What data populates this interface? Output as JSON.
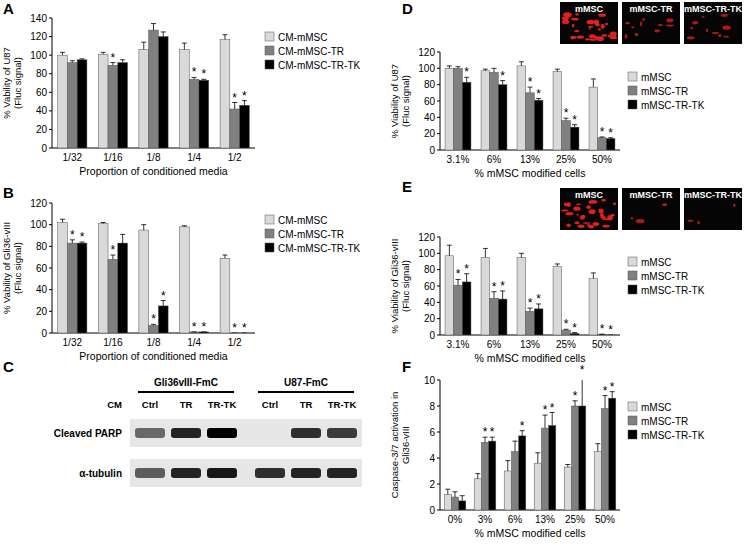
{
  "chart_data": [
    {
      "type": "bar",
      "panel_label": "A",
      "xlabel": "Proportion of conditioned media",
      "ylabel": "% Vability of U87\n(Fluc signal)",
      "categories": [
        "1/32",
        "1/16",
        "1/8",
        "1/4",
        "1/2"
      ],
      "ylim": [
        0,
        140
      ],
      "yticks": [
        0,
        20,
        40,
        60,
        80,
        100,
        120,
        140
      ],
      "grid": false,
      "legend": "right",
      "series": [
        {
          "name": "CM-mMSC",
          "color": "#d9d9d9",
          "values": [
            100,
            101,
            106,
            106,
            117
          ],
          "errors": [
            3,
            2,
            8,
            7,
            5
          ],
          "star_labels": [
            null,
            null,
            null,
            null,
            null
          ]
        },
        {
          "name": "CM-mMSC-TR",
          "color": "#808080",
          "values": [
            92,
            89,
            127,
            74,
            42
          ],
          "errors": [
            2,
            3,
            7,
            2,
            7
          ],
          "star_labels": [
            null,
            "*",
            null,
            "*",
            "*"
          ]
        },
        {
          "name": "CM-mMSC-TR-TK",
          "color": "#000000",
          "values": [
            95,
            92,
            120,
            73,
            46
          ],
          "errors": [
            1,
            3,
            5,
            1,
            5
          ],
          "star_labels": [
            null,
            null,
            null,
            "*",
            "*"
          ]
        }
      ]
    },
    {
      "type": "bar",
      "panel_label": "B",
      "xlabel": "Proportion of conditioned media",
      "ylabel": "% Vability of Gli36-vIII\n(Fluc signal)",
      "categories": [
        "1/32",
        "1/16",
        "1/8",
        "1/4",
        "1/2"
      ],
      "ylim": [
        0,
        120
      ],
      "yticks": [
        0,
        20,
        40,
        60,
        80,
        100,
        120
      ],
      "grid": false,
      "legend": "right",
      "series": [
        {
          "name": "CM-mMSC",
          "color": "#d9d9d9",
          "values": [
            102,
            101,
            95,
            98,
            69
          ],
          "errors": [
            3,
            1,
            5,
            1,
            3
          ],
          "star_labels": [
            null,
            null,
            null,
            null,
            null
          ]
        },
        {
          "name": "CM-mMSC-TR",
          "color": "#808080",
          "values": [
            83,
            68,
            7,
            1,
            0
          ],
          "errors": [
            3,
            4,
            1,
            0,
            0
          ],
          "star_labels": [
            "*",
            "*",
            "*",
            "*",
            "*"
          ]
        },
        {
          "name": "CM-mMSC-TR-TK",
          "color": "#000000",
          "values": [
            83,
            83,
            25,
            1,
            0
          ],
          "errors": [
            1,
            8,
            5,
            0,
            0
          ],
          "star_labels": [
            "*",
            null,
            "*",
            "*",
            "*"
          ]
        }
      ]
    },
    {
      "type": "bar",
      "panel_label": "D",
      "xlabel": "% mMSC modified cells",
      "ylabel": "% Viability of U87\n(Fluc signal)",
      "categories": [
        "3.1%",
        "6%",
        "13%",
        "25%",
        "50%"
      ],
      "ylim": [
        0,
        120
      ],
      "yticks": [
        0,
        20,
        40,
        60,
        80,
        100,
        120
      ],
      "grid": false,
      "legend": "right",
      "insets": [
        "mMSC",
        "mMSC-TR",
        "mMSC-TR-TK"
      ],
      "series": [
        {
          "name": "mMSC",
          "color": "#d9d9d9",
          "values": [
            100,
            97,
            103,
            96,
            77
          ],
          "errors": [
            3,
            2,
            5,
            3,
            10
          ],
          "star_labels": [
            null,
            null,
            null,
            null,
            null
          ]
        },
        {
          "name": "mMSC-TR",
          "color": "#808080",
          "values": [
            100,
            95,
            70,
            36,
            15
          ],
          "errors": [
            2,
            5,
            7,
            3,
            1
          ],
          "star_labels": [
            null,
            null,
            "*",
            "*",
            "*"
          ]
        },
        {
          "name": "mMSC-TR-TK",
          "color": "#000000",
          "values": [
            83,
            80,
            61,
            28,
            14
          ],
          "errors": [
            6,
            5,
            2,
            3,
            1
          ],
          "star_labels": [
            "*",
            "*",
            "*",
            "*",
            "*"
          ]
        }
      ]
    },
    {
      "type": "bar",
      "panel_label": "E",
      "xlabel": "% mMSC modified cells",
      "ylabel": "% Viability of Gli36-vIII\n(Fluc signal)",
      "categories": [
        "3.1%",
        "6%",
        "13%",
        "25%",
        "50%"
      ],
      "ylim": [
        0,
        120
      ],
      "yticks": [
        0,
        20,
        40,
        60,
        80,
        100,
        120
      ],
      "grid": false,
      "legend": "right",
      "insets": [
        "mMSC",
        "mMSC-TR",
        "mMSC-TR-TK"
      ],
      "series": [
        {
          "name": "mMSC",
          "color": "#d9d9d9",
          "values": [
            97,
            95,
            95,
            84,
            69
          ],
          "errors": [
            13,
            11,
            5,
            3,
            7
          ],
          "star_labels": [
            null,
            null,
            null,
            null,
            null
          ]
        },
        {
          "name": "mMSC-TR",
          "color": "#808080",
          "values": [
            61,
            45,
            29,
            6,
            1
          ],
          "errors": [
            7,
            8,
            4,
            1,
            0
          ],
          "star_labels": [
            "*",
            "*",
            "*",
            "*",
            "*"
          ]
        },
        {
          "name": "mMSC-TR-TK",
          "color": "#000000",
          "values": [
            65,
            44,
            32,
            2,
            0
          ],
          "errors": [
            10,
            10,
            6,
            1,
            0
          ],
          "star_labels": [
            "*",
            "*",
            "*",
            "*",
            "*"
          ]
        }
      ]
    },
    {
      "type": "bar",
      "panel_label": "F",
      "xlabel": "% mMSC modified cells",
      "ylabel": "Caspase-3/7 activation in\nGli36-vIII",
      "categories": [
        "0%",
        "3%",
        "6%",
        "13%",
        "25%",
        "50%"
      ],
      "ylim": [
        0,
        10
      ],
      "yticks": [
        0,
        2,
        4,
        6,
        8,
        10
      ],
      "grid": false,
      "legend": "right",
      "series": [
        {
          "name": "mMSC",
          "color": "#d9d9d9",
          "values": [
            1.2,
            2.4,
            3.0,
            3.6,
            3.3,
            4.5
          ],
          "errors": [
            0.4,
            0.4,
            0.8,
            0.8,
            0.2,
            0.6
          ],
          "star_labels": [
            null,
            null,
            null,
            null,
            null,
            null
          ]
        },
        {
          "name": "mMSC-TR",
          "color": "#808080",
          "values": [
            1.0,
            5.2,
            4.5,
            6.3,
            8.0,
            7.8
          ],
          "errors": [
            0.4,
            0.4,
            0.8,
            1.0,
            0.4,
            1.0
          ],
          "star_labels": [
            null,
            "*",
            null,
            "*",
            "*",
            "*"
          ]
        },
        {
          "name": "mMSC-TR-TK",
          "color": "#000000",
          "values": [
            0.7,
            5.3,
            5.7,
            6.5,
            8.0,
            8.6
          ],
          "errors": [
            0.4,
            0.3,
            0.4,
            1.0,
            2.4,
            0.5
          ],
          "star_labels": [
            null,
            "*",
            "*",
            "*",
            "*",
            "*"
          ]
        }
      ]
    }
  ],
  "blot": {
    "panel_label": "C",
    "condition_label": "CM",
    "groups": [
      "Gli36vIII-FmC",
      "U87-FmC"
    ],
    "lanes": [
      "Ctrl",
      "TR",
      "TR-TK"
    ],
    "rows": [
      {
        "name": "Cleaved PARP",
        "intensity": [
          [
            0.55,
            0.85,
            1.0
          ],
          [
            0.0,
            0.8,
            0.75
          ]
        ]
      },
      {
        "name": "α-tubulin",
        "intensity": [
          [
            0.6,
            0.85,
            0.9
          ],
          [
            0.8,
            0.85,
            0.85
          ]
        ]
      }
    ]
  }
}
